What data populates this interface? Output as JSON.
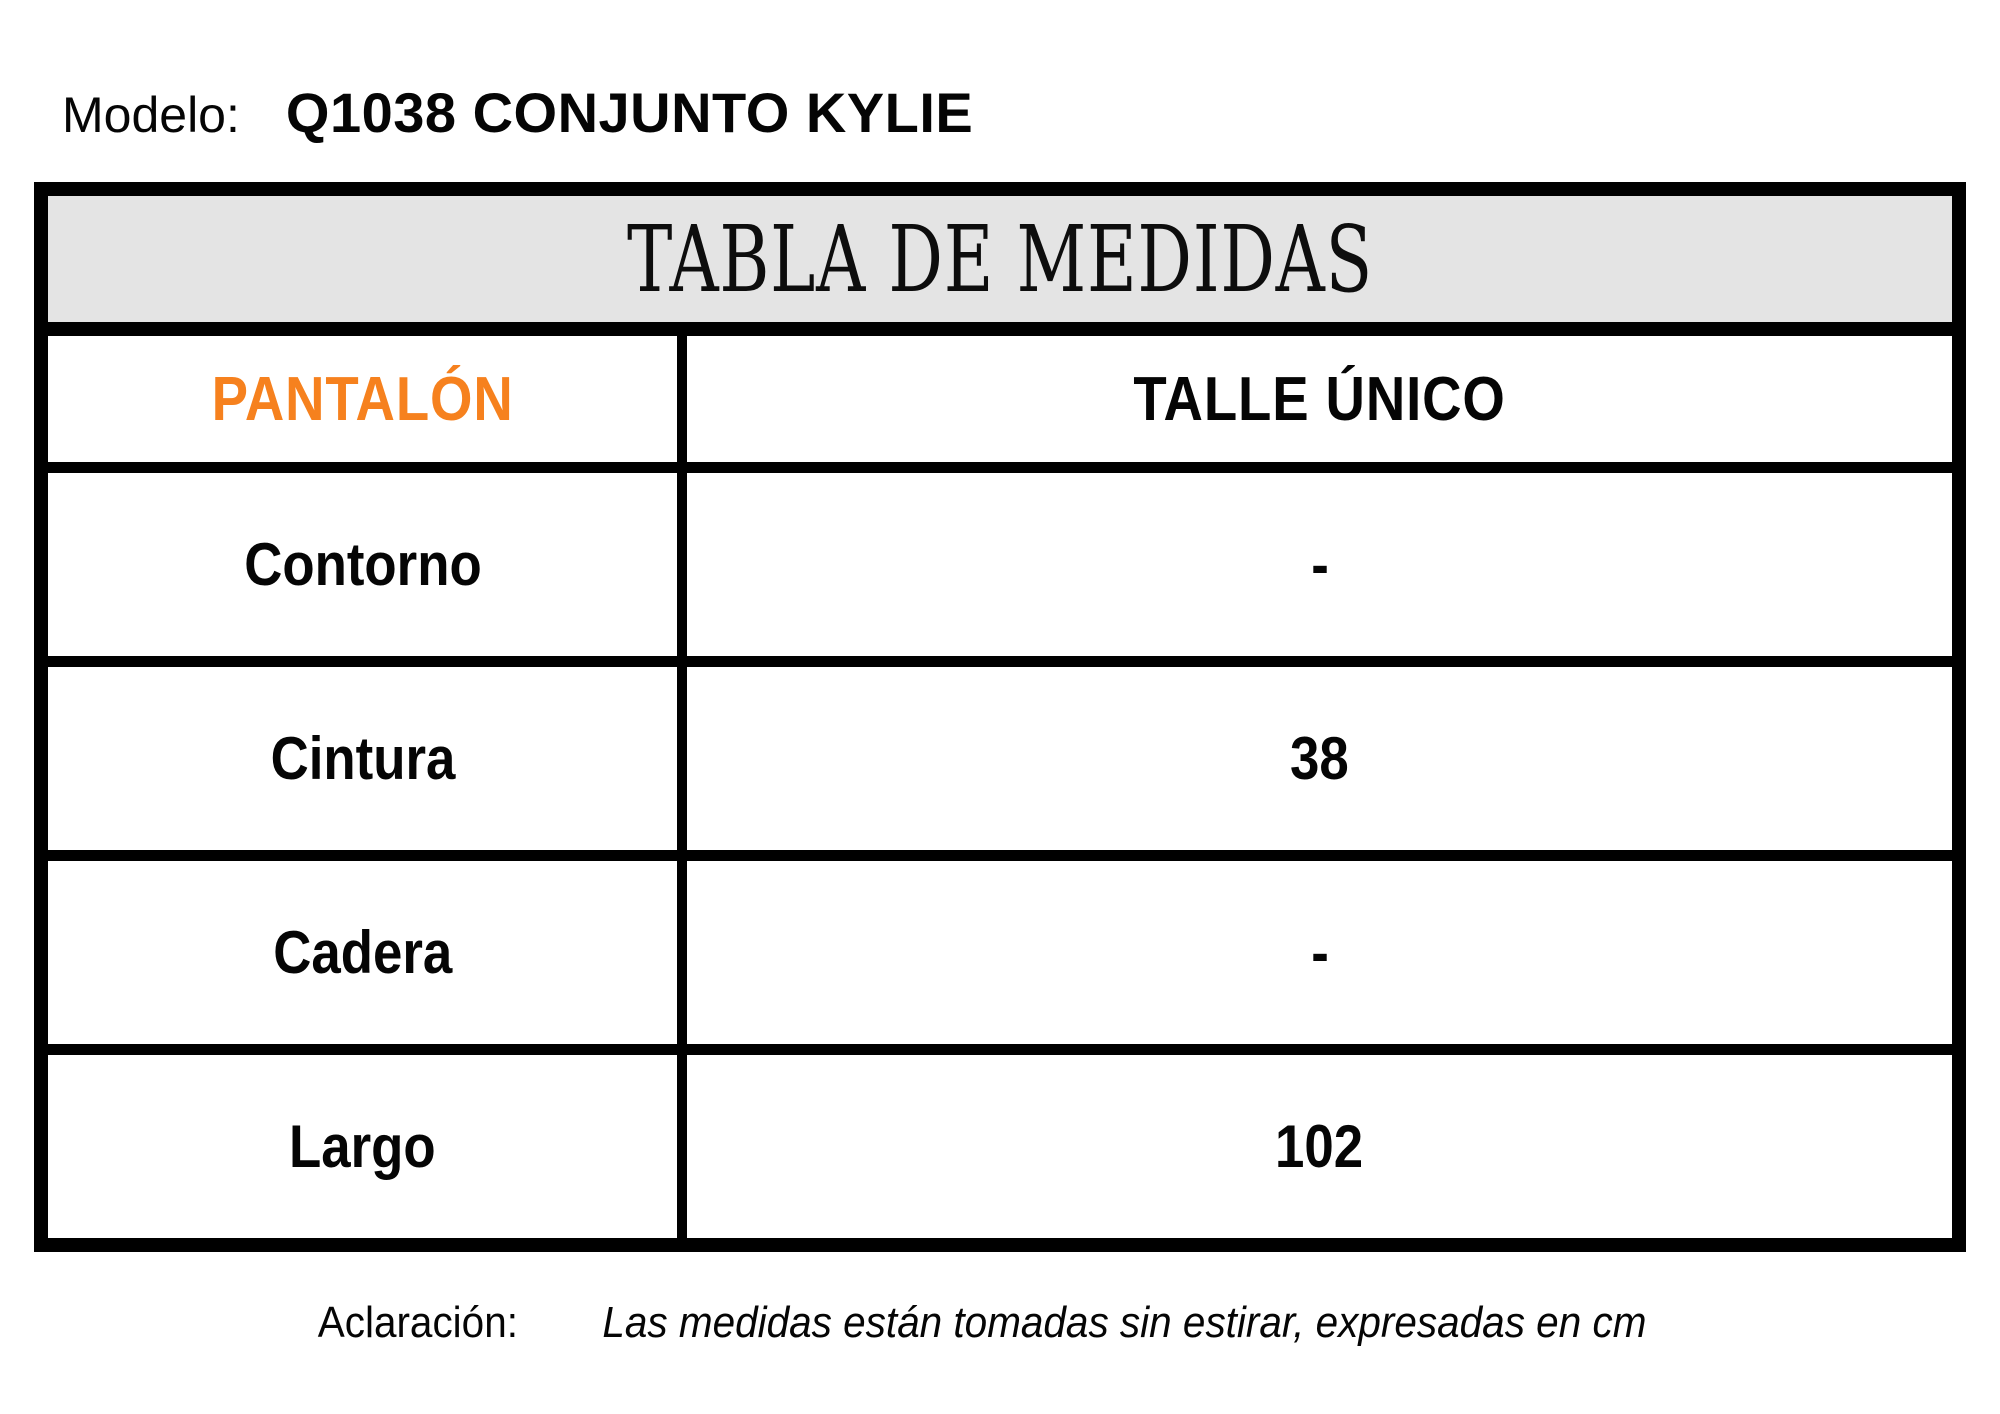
{
  "page": {
    "model_label": "Modelo:",
    "model_value": "Q1038 CONJUNTO KYLIE"
  },
  "table": {
    "title": "TABLA DE MEDIDAS",
    "category_header": "PANTALÓN",
    "size_header": "TALLE ÚNICO",
    "rows": [
      {
        "label": "Contorno",
        "value": "-"
      },
      {
        "label": "Cintura",
        "value": "38"
      },
      {
        "label": "Cadera",
        "value": "-"
      },
      {
        "label": "Largo",
        "value": "102"
      }
    ]
  },
  "footer": {
    "label": "Aclaración:",
    "note": "Las medidas están tomadas sin estirar, expresadas en cm"
  },
  "colors": {
    "accent_orange": "#F6811E",
    "title_bar_gray": "#E4E4E4",
    "border_black": "#000000",
    "background": "#FFFFFF"
  }
}
